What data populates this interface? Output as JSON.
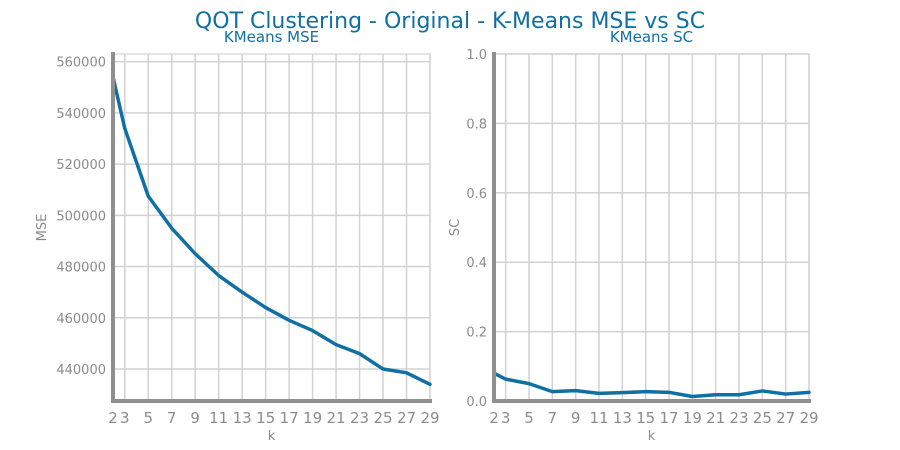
{
  "title": "QOT Clustering - Original - K-Means MSE vs SC",
  "colors": {
    "line": "#1170a3",
    "title": "#1170a3",
    "grid": "#d2d2d2",
    "spine": "#8f8f8f",
    "label": "#8c8c8c"
  },
  "chart_data": [
    {
      "type": "line",
      "title": "KMeans MSE",
      "xlabel": "k",
      "ylabel": "MSE",
      "grid": true,
      "x": [
        2,
        3,
        5,
        7,
        9,
        11,
        13,
        15,
        17,
        19,
        21,
        23,
        25,
        27,
        29
      ],
      "xticks": [
        2,
        3,
        5,
        7,
        9,
        11,
        13,
        15,
        17,
        19,
        21,
        23,
        25,
        27,
        29
      ],
      "xlim": [
        2,
        29
      ],
      "ylim": [
        427500,
        563000
      ],
      "yticks": [
        440000,
        460000,
        480000,
        500000,
        520000,
        540000,
        560000
      ],
      "series": [
        {
          "values": [
            554000,
            534000,
            507500,
            495000,
            485000,
            476500,
            470000,
            464000,
            459000,
            455000,
            449500,
            446000,
            440000,
            438500,
            434000
          ]
        }
      ]
    },
    {
      "type": "line",
      "title": "KMeans SC",
      "xlabel": "k",
      "ylabel": "SC",
      "grid": true,
      "x": [
        2,
        3,
        5,
        7,
        9,
        11,
        13,
        15,
        17,
        19,
        21,
        23,
        25,
        27,
        29
      ],
      "xticks": [
        2,
        3,
        5,
        7,
        9,
        11,
        13,
        15,
        17,
        19,
        21,
        23,
        25,
        27,
        29
      ],
      "xlim": [
        2,
        29
      ],
      "ylim": [
        0,
        1.0
      ],
      "yticks": [
        "0.0",
        "0.2",
        "0.4",
        "0.6",
        "0.8",
        "1.0"
      ],
      "series": [
        {
          "values": [
            0.08,
            0.063,
            0.05,
            0.027,
            0.03,
            0.022,
            0.024,
            0.027,
            0.025,
            0.013,
            0.018,
            0.018,
            0.029,
            0.02,
            0.025
          ]
        }
      ]
    }
  ]
}
